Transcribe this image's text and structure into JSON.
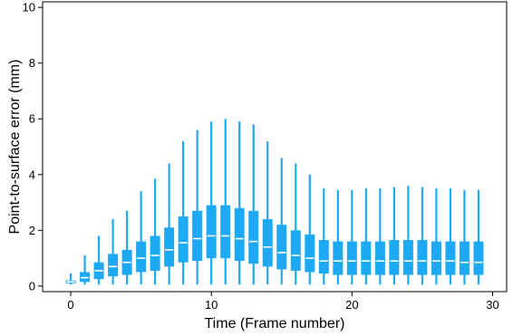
{
  "chart_data": {
    "type": "box",
    "xlabel": "Time (Frame number)",
    "ylabel": "Point-to-surface error (mm)",
    "xlim": [
      -2,
      31
    ],
    "ylim": [
      -0.2,
      10.2
    ],
    "xticks": [
      0,
      10,
      20,
      30
    ],
    "yticks": [
      0,
      2,
      4,
      6,
      8,
      10
    ],
    "grid": false,
    "color": "#1da9f3",
    "median_color": "#ffffff",
    "boxes": [
      {
        "frame": 0,
        "min": 0.05,
        "q1": 0.1,
        "median": 0.15,
        "q3": 0.2,
        "max": 0.45
      },
      {
        "frame": 1,
        "min": 0.05,
        "q1": 0.15,
        "median": 0.3,
        "q3": 0.5,
        "max": 1.1
      },
      {
        "frame": 2,
        "min": 0.05,
        "q1": 0.25,
        "median": 0.55,
        "q3": 0.85,
        "max": 1.8
      },
      {
        "frame": 3,
        "min": 0.05,
        "q1": 0.35,
        "median": 0.7,
        "q3": 1.15,
        "max": 2.4
      },
      {
        "frame": 4,
        "min": 0.05,
        "q1": 0.4,
        "median": 0.85,
        "q3": 1.3,
        "max": 2.7
      },
      {
        "frame": 5,
        "min": 0.05,
        "q1": 0.5,
        "median": 1.0,
        "q3": 1.6,
        "max": 3.4
      },
      {
        "frame": 6,
        "min": 0.05,
        "q1": 0.55,
        "median": 1.1,
        "q3": 1.8,
        "max": 3.85
      },
      {
        "frame": 7,
        "min": 0.05,
        "q1": 0.7,
        "median": 1.3,
        "q3": 2.1,
        "max": 4.4
      },
      {
        "frame": 8,
        "min": 0.05,
        "q1": 0.85,
        "median": 1.55,
        "q3": 2.5,
        "max": 5.2
      },
      {
        "frame": 9,
        "min": 0.05,
        "q1": 0.9,
        "median": 1.7,
        "q3": 2.7,
        "max": 5.6
      },
      {
        "frame": 10,
        "min": 0.05,
        "q1": 1.0,
        "median": 1.8,
        "q3": 2.9,
        "max": 5.9
      },
      {
        "frame": 11,
        "min": 0.05,
        "q1": 1.0,
        "median": 1.8,
        "q3": 2.9,
        "max": 6.0
      },
      {
        "frame": 12,
        "min": 0.05,
        "q1": 0.9,
        "median": 1.7,
        "q3": 2.8,
        "max": 5.9
      },
      {
        "frame": 13,
        "min": 0.05,
        "q1": 0.8,
        "median": 1.6,
        "q3": 2.7,
        "max": 5.8
      },
      {
        "frame": 14,
        "min": 0.05,
        "q1": 0.7,
        "median": 1.4,
        "q3": 2.4,
        "max": 5.2
      },
      {
        "frame": 15,
        "min": 0.05,
        "q1": 0.6,
        "median": 1.2,
        "q3": 2.2,
        "max": 4.6
      },
      {
        "frame": 16,
        "min": 0.05,
        "q1": 0.55,
        "median": 1.1,
        "q3": 2.0,
        "max": 4.4
      },
      {
        "frame": 17,
        "min": 0.05,
        "q1": 0.5,
        "median": 1.0,
        "q3": 1.85,
        "max": 4.0
      },
      {
        "frame": 18,
        "min": 0.05,
        "q1": 0.45,
        "median": 0.9,
        "q3": 1.65,
        "max": 3.5
      },
      {
        "frame": 19,
        "min": 0.05,
        "q1": 0.4,
        "median": 0.9,
        "q3": 1.6,
        "max": 3.45
      },
      {
        "frame": 20,
        "min": 0.05,
        "q1": 0.4,
        "median": 0.9,
        "q3": 1.6,
        "max": 3.45
      },
      {
        "frame": 21,
        "min": 0.05,
        "q1": 0.4,
        "median": 0.9,
        "q3": 1.6,
        "max": 3.5
      },
      {
        "frame": 22,
        "min": 0.05,
        "q1": 0.4,
        "median": 0.9,
        "q3": 1.6,
        "max": 3.5
      },
      {
        "frame": 23,
        "min": 0.05,
        "q1": 0.4,
        "median": 0.9,
        "q3": 1.65,
        "max": 3.55
      },
      {
        "frame": 24,
        "min": 0.05,
        "q1": 0.4,
        "median": 0.9,
        "q3": 1.65,
        "max": 3.6
      },
      {
        "frame": 25,
        "min": 0.05,
        "q1": 0.4,
        "median": 0.9,
        "q3": 1.65,
        "max": 3.55
      },
      {
        "frame": 26,
        "min": 0.05,
        "q1": 0.4,
        "median": 0.9,
        "q3": 1.6,
        "max": 3.5
      },
      {
        "frame": 27,
        "min": 0.05,
        "q1": 0.4,
        "median": 0.9,
        "q3": 1.6,
        "max": 3.5
      },
      {
        "frame": 28,
        "min": 0.05,
        "q1": 0.4,
        "median": 0.85,
        "q3": 1.6,
        "max": 3.45
      },
      {
        "frame": 29,
        "min": 0.05,
        "q1": 0.4,
        "median": 0.85,
        "q3": 1.6,
        "max": 3.45
      }
    ]
  }
}
